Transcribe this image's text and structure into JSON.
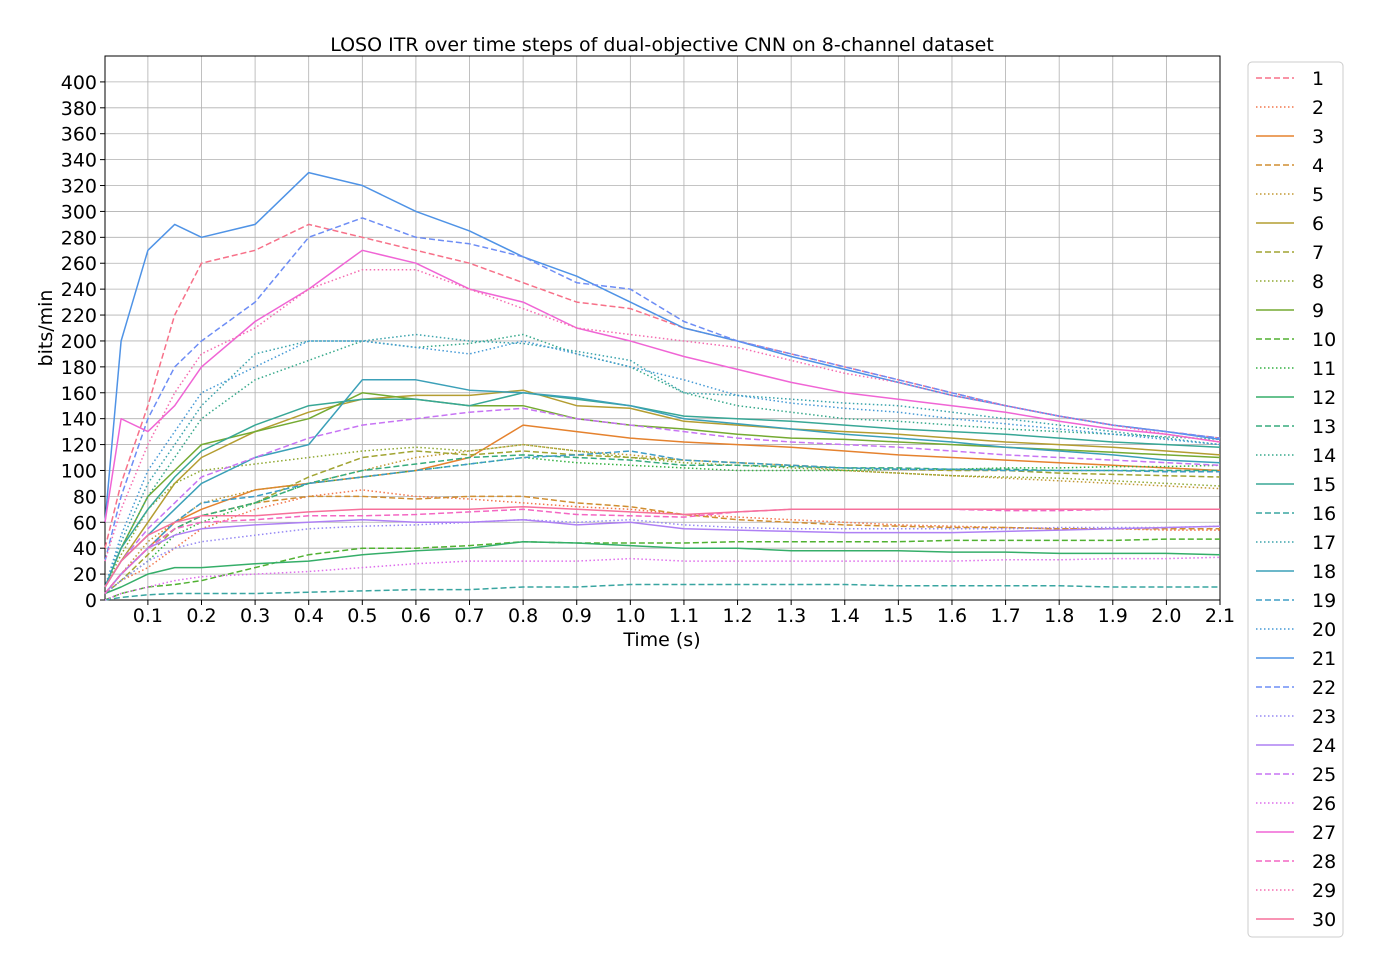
{
  "chart_data": {
    "type": "line",
    "title": "LOSO ITR over time steps of dual-objective CNN on 8-channel dataset",
    "xlabel": "Time (s)",
    "ylabel": "bits/min",
    "xlim": [
      0.02,
      2.1
    ],
    "ylim": [
      0,
      420
    ],
    "xticks": [
      "0.1",
      "0.2",
      "0.3",
      "0.4",
      "0.5",
      "0.6",
      "0.7",
      "0.8",
      "0.9",
      "1.0",
      "1.1",
      "1.2",
      "1.3",
      "1.4",
      "1.5",
      "1.6",
      "1.7",
      "1.8",
      "1.9",
      "2.0",
      "2.1"
    ],
    "yticks": [
      "0",
      "20",
      "40",
      "60",
      "80",
      "100",
      "120",
      "140",
      "160",
      "180",
      "200",
      "220",
      "240",
      "260",
      "280",
      "300",
      "320",
      "340",
      "360",
      "380",
      "400"
    ],
    "grid": true,
    "legend_position": "outside-right",
    "x": [
      0.02,
      0.05,
      0.1,
      0.15,
      0.2,
      0.3,
      0.4,
      0.5,
      0.6,
      0.7,
      0.8,
      0.9,
      1.0,
      1.1,
      1.2,
      1.3,
      1.4,
      1.5,
      1.6,
      1.7,
      1.8,
      1.9,
      2.0,
      2.1
    ],
    "series": [
      {
        "name": "1",
        "color": "#f77189",
        "style": "dashed",
        "values": [
          40,
          90,
          150,
          220,
          260,
          270,
          290,
          280,
          270,
          260,
          245,
          230,
          225,
          210,
          200,
          190,
          180,
          170,
          160,
          150,
          142,
          135,
          130,
          125
        ]
      },
      {
        "name": "2",
        "color": "#f2764c",
        "style": "dotted",
        "values": [
          5,
          15,
          25,
          40,
          55,
          70,
          80,
          85,
          80,
          78,
          75,
          72,
          70,
          66,
          64,
          62,
          60,
          58,
          57,
          56,
          55,
          55,
          54,
          54
        ]
      },
      {
        "name": "3",
        "color": "#e5822e",
        "style": "solid",
        "values": [
          5,
          20,
          40,
          60,
          70,
          85,
          90,
          95,
          100,
          110,
          135,
          130,
          125,
          122,
          120,
          118,
          115,
          112,
          110,
          108,
          106,
          104,
          102,
          100
        ]
      },
      {
        "name": "4",
        "color": "#d08e30",
        "style": "dashed",
        "values": [
          5,
          20,
          40,
          55,
          65,
          75,
          80,
          80,
          78,
          80,
          80,
          75,
          72,
          66,
          62,
          60,
          58,
          57,
          56,
          56,
          55,
          55,
          55,
          55
        ]
      },
      {
        "name": "5",
        "color": "#c29832",
        "style": "dotted",
        "values": [
          5,
          20,
          45,
          60,
          75,
          85,
          90,
          100,
          110,
          115,
          120,
          115,
          112,
          108,
          106,
          104,
          100,
          98,
          96,
          94,
          92,
          90,
          88,
          86
        ]
      },
      {
        "name": "6",
        "color": "#b49d31",
        "style": "solid",
        "values": [
          10,
          30,
          60,
          90,
          110,
          130,
          145,
          155,
          158,
          158,
          162,
          150,
          148,
          138,
          135,
          132,
          130,
          128,
          125,
          122,
          120,
          118,
          115,
          112
        ]
      },
      {
        "name": "7",
        "color": "#a1a431",
        "style": "dashed",
        "values": [
          5,
          15,
          35,
          55,
          65,
          75,
          95,
          110,
          115,
          112,
          115,
          112,
          110,
          108,
          106,
          104,
          102,
          101,
          100,
          100,
          98,
          97,
          96,
          95
        ]
      },
      {
        "name": "8",
        "color": "#8fa830",
        "style": "dotted",
        "values": [
          10,
          35,
          70,
          90,
          100,
          105,
          110,
          115,
          118,
          115,
          120,
          115,
          110,
          106,
          104,
          102,
          100,
          98,
          96,
          95,
          94,
          92,
          90,
          88
        ]
      },
      {
        "name": "9",
        "color": "#75aa32",
        "style": "solid",
        "values": [
          10,
          40,
          80,
          100,
          120,
          130,
          140,
          160,
          155,
          150,
          150,
          140,
          135,
          132,
          128,
          125,
          124,
          122,
          120,
          118,
          116,
          114,
          112,
          110
        ]
      },
      {
        "name": "10",
        "color": "#50b131",
        "style": "dashed",
        "values": [
          0,
          5,
          10,
          12,
          15,
          25,
          35,
          40,
          40,
          42,
          45,
          44,
          44,
          44,
          45,
          45,
          45,
          45,
          46,
          46,
          46,
          46,
          47,
          47
        ]
      },
      {
        "name": "11",
        "color": "#33b142",
        "style": "dotted",
        "values": [
          5,
          15,
          30,
          50,
          60,
          75,
          90,
          95,
          100,
          105,
          110,
          106,
          104,
          102,
          100,
          100,
          100,
          101,
          101,
          102,
          102,
          103,
          103,
          104
        ]
      },
      {
        "name": "12",
        "color": "#35ae69",
        "style": "solid",
        "values": [
          5,
          10,
          20,
          25,
          25,
          28,
          30,
          35,
          38,
          40,
          45,
          44,
          42,
          40,
          40,
          38,
          38,
          38,
          37,
          37,
          36,
          36,
          36,
          35
        ]
      },
      {
        "name": "13",
        "color": "#36ab7d",
        "style": "dashed",
        "values": [
          5,
          20,
          40,
          55,
          65,
          75,
          90,
          100,
          105,
          110,
          112,
          110,
          108,
          104,
          104,
          103,
          102,
          102,
          101,
          101,
          100,
          100,
          100,
          100
        ]
      },
      {
        "name": "14",
        "color": "#37a98b",
        "style": "dotted",
        "values": [
          10,
          40,
          80,
          110,
          140,
          170,
          185,
          200,
          195,
          198,
          205,
          190,
          180,
          160,
          150,
          145,
          140,
          138,
          135,
          132,
          130,
          128,
          126,
          124
        ]
      },
      {
        "name": "15",
        "color": "#38a796",
        "style": "solid",
        "values": [
          10,
          40,
          70,
          95,
          115,
          135,
          150,
          155,
          155,
          150,
          160,
          155,
          150,
          142,
          140,
          138,
          135,
          132,
          130,
          128,
          125,
          122,
          120,
          118
        ]
      },
      {
        "name": "16",
        "color": "#39a5a1",
        "style": "dashed",
        "values": [
          0,
          2,
          4,
          5,
          5,
          5,
          6,
          7,
          8,
          8,
          10,
          10,
          12,
          12,
          12,
          12,
          12,
          11,
          11,
          11,
          11,
          10,
          10,
          10
        ]
      },
      {
        "name": "17",
        "color": "#3aa3ac",
        "style": "dotted",
        "values": [
          10,
          45,
          90,
          120,
          150,
          190,
          200,
          200,
          205,
          200,
          198,
          192,
          185,
          160,
          158,
          155,
          152,
          150,
          145,
          140,
          135,
          130,
          125,
          120
        ]
      },
      {
        "name": "18",
        "color": "#3ba0b8",
        "style": "solid",
        "values": [
          10,
          30,
          50,
          70,
          90,
          110,
          120,
          170,
          170,
          162,
          160,
          156,
          150,
          140,
          136,
          132,
          128,
          125,
          122,
          118,
          115,
          112,
          108,
          106
        ]
      },
      {
        "name": "19",
        "color": "#3e9dc6",
        "style": "dashed",
        "values": [
          5,
          20,
          40,
          60,
          75,
          80,
          90,
          95,
          100,
          105,
          110,
          112,
          115,
          108,
          106,
          104,
          102,
          101,
          101,
          100,
          100,
          100,
          99,
          99
        ]
      },
      {
        "name": "20",
        "color": "#4499d6",
        "style": "dotted",
        "values": [
          10,
          50,
          100,
          130,
          160,
          180,
          200,
          200,
          195,
          190,
          200,
          190,
          180,
          170,
          158,
          152,
          148,
          145,
          140,
          136,
          132,
          128,
          124,
          120
        ]
      },
      {
        "name": "21",
        "color": "#4f93e6",
        "style": "solid",
        "values": [
          60,
          200,
          270,
          290,
          280,
          290,
          330,
          320,
          300,
          285,
          265,
          250,
          230,
          210,
          200,
          188,
          178,
          168,
          158,
          150,
          142,
          135,
          130,
          124
        ]
      },
      {
        "name": "22",
        "color": "#6d8df5",
        "style": "dashed",
        "values": [
          30,
          80,
          140,
          180,
          200,
          230,
          280,
          295,
          280,
          275,
          265,
          245,
          240,
          215,
          200,
          190,
          180,
          170,
          160,
          150,
          142,
          135,
          130,
          125
        ]
      },
      {
        "name": "23",
        "color": "#9588f4",
        "style": "dotted",
        "values": [
          5,
          15,
          30,
          40,
          45,
          50,
          55,
          57,
          58,
          60,
          62,
          60,
          62,
          58,
          56,
          55,
          55,
          55,
          55,
          55,
          56,
          56,
          56,
          57
        ]
      },
      {
        "name": "24",
        "color": "#ae80f4",
        "style": "solid",
        "values": [
          5,
          20,
          40,
          50,
          55,
          58,
          60,
          62,
          60,
          60,
          62,
          58,
          60,
          55,
          54,
          53,
          52,
          52,
          52,
          53,
          54,
          55,
          56,
          57
        ]
      },
      {
        "name": "25",
        "color": "#c774f4",
        "style": "dashed",
        "values": [
          10,
          30,
          55,
          75,
          95,
          110,
          125,
          135,
          140,
          145,
          148,
          140,
          135,
          130,
          125,
          122,
          120,
          118,
          115,
          112,
          110,
          108,
          106,
          104
        ]
      },
      {
        "name": "26",
        "color": "#de6cec",
        "style": "dotted",
        "values": [
          0,
          5,
          10,
          15,
          18,
          20,
          22,
          25,
          28,
          30,
          30,
          30,
          32,
          30,
          30,
          30,
          30,
          30,
          30,
          31,
          31,
          32,
          32,
          33
        ]
      },
      {
        "name": "27",
        "color": "#f065d5",
        "style": "solid",
        "values": [
          60,
          140,
          130,
          150,
          180,
          215,
          240,
          270,
          260,
          240,
          230,
          210,
          200,
          188,
          178,
          168,
          160,
          155,
          150,
          145,
          138,
          132,
          128,
          122
        ]
      },
      {
        "name": "28",
        "color": "#f467c3",
        "style": "dashed",
        "values": [
          5,
          20,
          40,
          55,
          60,
          62,
          65,
          65,
          66,
          68,
          70,
          66,
          65,
          64,
          68,
          70,
          70,
          70,
          70,
          69,
          69,
          70,
          70,
          70
        ]
      },
      {
        "name": "29",
        "color": "#f56cb0",
        "style": "dotted",
        "values": [
          30,
          70,
          120,
          160,
          190,
          210,
          240,
          255,
          255,
          240,
          225,
          210,
          205,
          200,
          195,
          185,
          175,
          168,
          158,
          150,
          142,
          135,
          128,
          122
        ]
      },
      {
        "name": "30",
        "color": "#f6709b",
        "style": "solid",
        "values": [
          10,
          30,
          50,
          60,
          65,
          65,
          68,
          70,
          70,
          70,
          72,
          70,
          68,
          66,
          68,
          70,
          70,
          70,
          70,
          70,
          70,
          70,
          70,
          70
        ]
      }
    ]
  }
}
